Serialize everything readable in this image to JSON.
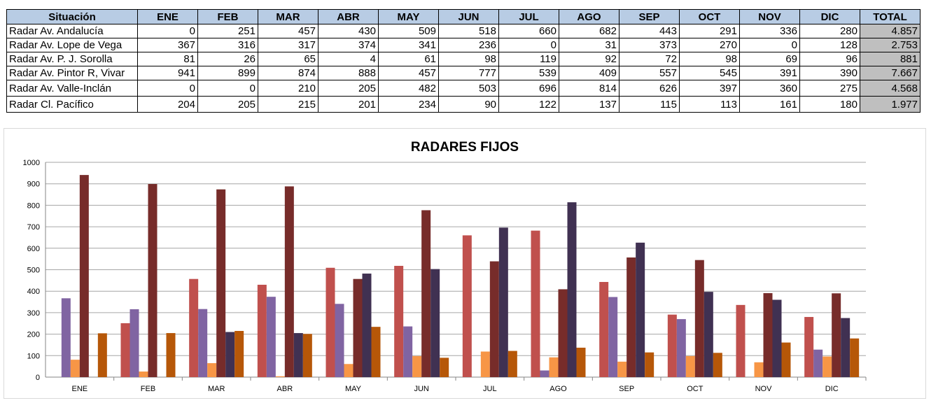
{
  "table": {
    "header_first": "Situación",
    "months": [
      "ENE",
      "FEB",
      "MAR",
      "ABR",
      "MAY",
      "JUN",
      "JUL",
      "AGO",
      "SEP",
      "OCT",
      "NOV",
      "DIC"
    ],
    "header_total": "TOTAL",
    "rows": [
      {
        "name": "Radar Av. Andalucía",
        "values": [
          "0",
          "251",
          "457",
          "430",
          "509",
          "518",
          "660",
          "682",
          "443",
          "291",
          "336",
          "280"
        ],
        "total": "4.857"
      },
      {
        "name": "Radar Av. Lope de Vega",
        "values": [
          "367",
          "316",
          "317",
          "374",
          "341",
          "236",
          "0",
          "31",
          "373",
          "270",
          "0",
          "128"
        ],
        "total": "2.753"
      },
      {
        "name": "Radar Av. P. J. Sorolla",
        "values": [
          "81",
          "26",
          "65",
          "4",
          "61",
          "98",
          "119",
          "92",
          "72",
          "98",
          "69",
          "96"
        ],
        "total": "881"
      },
      {
        "name": "Radar Av. Pintor R, Vivar",
        "values": [
          "941",
          "899",
          "874",
          "888",
          "457",
          "777",
          "539",
          "409",
          "557",
          "545",
          "391",
          "390"
        ],
        "total": "7.667"
      },
      {
        "name": "Radar Av. Valle-Inclán",
        "values": [
          "0",
          "0",
          "210",
          "205",
          "482",
          "503",
          "696",
          "814",
          "626",
          "397",
          "360",
          "275"
        ],
        "total": "4.568"
      },
      {
        "name": "Radar Cl. Pacífico",
        "values": [
          "204",
          "205",
          "215",
          "201",
          "234",
          "90",
          "122",
          "137",
          "115",
          "113",
          "161",
          "180"
        ],
        "total": "1.977"
      }
    ]
  },
  "chart_data": {
    "type": "bar",
    "title": "RADARES FIJOS",
    "xlabel": "",
    "ylabel": "",
    "categories": [
      "ENE",
      "FEB",
      "MAR",
      "ABR",
      "MAY",
      "JUN",
      "JUL",
      "AGO",
      "SEP",
      "OCT",
      "NOV",
      "DIC"
    ],
    "ylim": [
      0,
      1000
    ],
    "yticks": [
      0,
      100,
      200,
      300,
      400,
      500,
      600,
      700,
      800,
      900,
      1000
    ],
    "grid": true,
    "legend": "none",
    "series": [
      {
        "values": [
          0,
          251,
          457,
          430,
          509,
          518,
          660,
          682,
          443,
          291,
          336,
          280
        ],
        "color": "#c0504d"
      },
      {
        "values": [
          367,
          316,
          317,
          374,
          341,
          236,
          0,
          31,
          373,
          270,
          0,
          128
        ],
        "color": "#8064a2"
      },
      {
        "values": [
          81,
          26,
          65,
          4,
          61,
          98,
          119,
          92,
          72,
          98,
          69,
          96
        ],
        "color": "#f79646"
      },
      {
        "values": [
          941,
          899,
          874,
          888,
          457,
          777,
          539,
          409,
          557,
          545,
          391,
          390
        ],
        "color": "#772c2a"
      },
      {
        "values": [
          0,
          0,
          210,
          205,
          482,
          503,
          696,
          814,
          626,
          397,
          360,
          275
        ],
        "color": "#403152"
      },
      {
        "values": [
          204,
          205,
          215,
          201,
          234,
          90,
          122,
          137,
          115,
          113,
          161,
          180
        ],
        "color": "#b65708"
      }
    ]
  }
}
